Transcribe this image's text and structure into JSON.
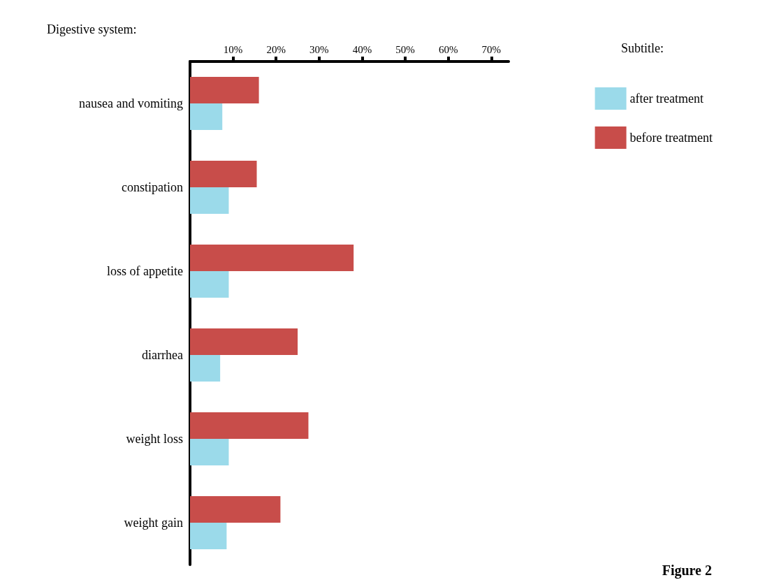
{
  "chart_data": {
    "type": "bar",
    "orientation": "horizontal",
    "title": "Digestive system:",
    "legend_title": "Subtitle:",
    "legend": "top right",
    "grid": false,
    "categories": [
      "nausea and vomiting",
      "constipation",
      "loss of appetite",
      "diarrhea",
      "weight loss",
      "weight gain"
    ],
    "series": [
      {
        "name": "after treatment",
        "color": "#9bdaea",
        "values": [
          7.5,
          9,
          9,
          7,
          9,
          8.5
        ]
      },
      {
        "name": "before treatment",
        "color": "#c84d4a",
        "values": [
          16,
          15.5,
          38,
          25,
          27.5,
          21
        ]
      }
    ],
    "xlim": [
      0,
      74
    ],
    "xticks": [
      {
        "value": 10,
        "label": "10%"
      },
      {
        "value": 20,
        "label": "20%"
      },
      {
        "value": 30,
        "label": "30%"
      },
      {
        "value": 40,
        "label": "40%"
      },
      {
        "value": 50,
        "label": "50%"
      },
      {
        "value": 60,
        "label": "60%"
      },
      {
        "value": 70,
        "label": "70%"
      }
    ],
    "annotations": [
      "Figure 2"
    ]
  }
}
